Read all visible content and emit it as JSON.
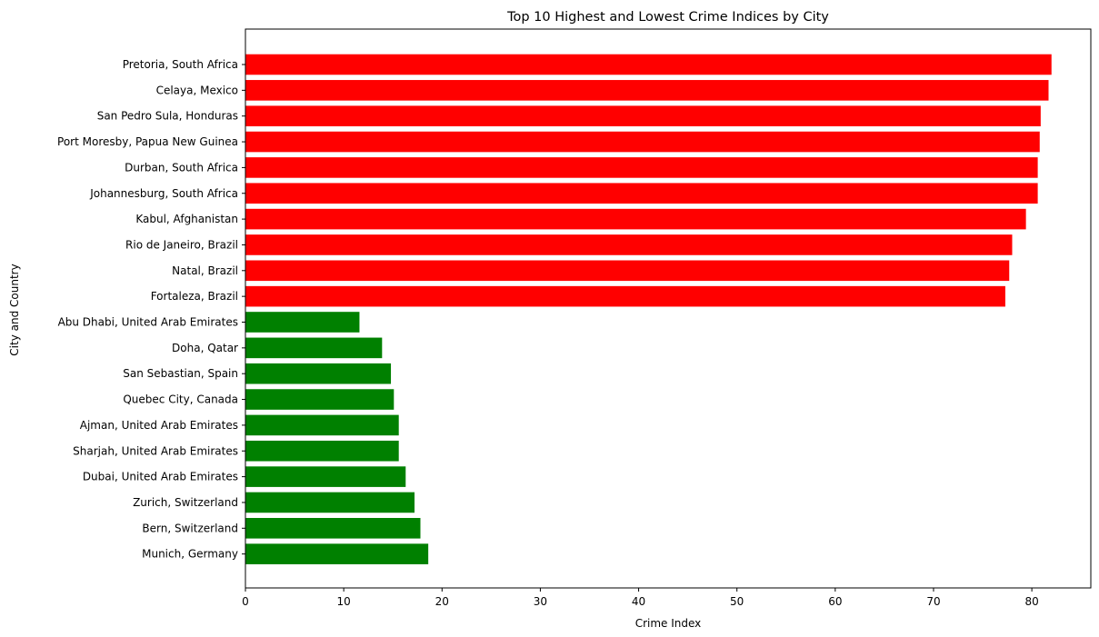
{
  "chart_data": {
    "type": "bar",
    "orientation": "horizontal",
    "title": "Top 10 Highest and Lowest Crime Indices by City",
    "xlabel": "Crime Index",
    "ylabel": "City and Country",
    "xlim": [
      0,
      86
    ],
    "xticks": [
      0,
      10,
      20,
      30,
      40,
      50,
      60,
      70,
      80
    ],
    "grid": false,
    "colors": {
      "highest": "#ff0000",
      "lowest": "#008000"
    },
    "categories": [
      "Pretoria, South Africa",
      "Celaya, Mexico",
      "San Pedro Sula, Honduras",
      "Port Moresby, Papua New Guinea",
      "Durban, South Africa",
      "Johannesburg, South Africa",
      "Kabul, Afghanistan",
      "Rio de Janeiro, Brazil",
      "Natal, Brazil",
      "Fortaleza, Brazil",
      "Abu Dhabi, United Arab Emirates",
      "Doha, Qatar",
      "San Sebastian, Spain",
      "Quebec City, Canada",
      "Ajman, United Arab Emirates",
      "Sharjah, United Arab Emirates",
      "Dubai, United Arab Emirates",
      "Zurich, Switzerland",
      "Bern, Switzerland",
      "Munich, Germany"
    ],
    "values": [
      82.0,
      81.7,
      80.9,
      80.8,
      80.6,
      80.6,
      79.4,
      78.0,
      77.7,
      77.3,
      11.6,
      13.9,
      14.8,
      15.1,
      15.6,
      15.6,
      16.3,
      17.2,
      17.8,
      18.6
    ],
    "groups": [
      "highest",
      "highest",
      "highest",
      "highest",
      "highest",
      "highest",
      "highest",
      "highest",
      "highest",
      "highest",
      "lowest",
      "lowest",
      "lowest",
      "lowest",
      "lowest",
      "lowest",
      "lowest",
      "lowest",
      "lowest",
      "lowest"
    ]
  }
}
